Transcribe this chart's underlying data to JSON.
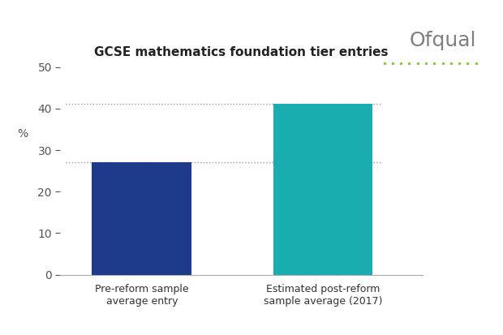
{
  "title": "GCSE mathematics foundation tier entries",
  "categories": [
    "Pre-reform sample\naverage entry",
    "Estimated post-reform\nsample average (2017)"
  ],
  "values": [
    27.0,
    41.2
  ],
  "bar_colors": [
    "#1f3a8a",
    "#19adb0"
  ],
  "ylabel": "%",
  "ylim": [
    0,
    50
  ],
  "yticks": [
    0,
    10,
    20,
    30,
    40,
    50
  ],
  "hlines": [
    27.0,
    41.2
  ],
  "hline_color": "#999999",
  "background_color": "#ffffff",
  "title_fontsize": 11,
  "tick_fontsize": 10,
  "label_fontsize": 9,
  "ofqual_text": "Ofqual",
  "ofqual_color": "#7f7f7f",
  "ofqual_dot_color": "#8dc63f"
}
